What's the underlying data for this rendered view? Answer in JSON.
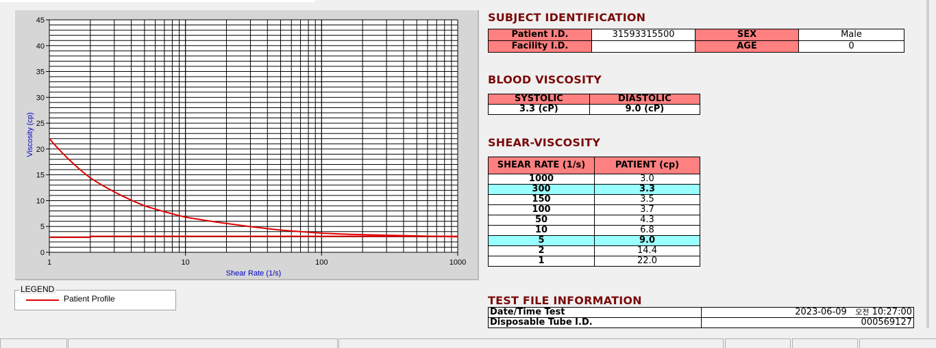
{
  "chart_data": {
    "type": "line",
    "xlabel": "Shear Rate (1/s)",
    "ylabel": "Viscosity (cp)",
    "xscale": "log",
    "xlim": [
      1,
      1000
    ],
    "ylim": [
      0,
      45
    ],
    "xticks": [
      "1",
      "10",
      "100",
      "1000"
    ],
    "yticks": [
      "0",
      "5",
      "10",
      "15",
      "20",
      "25",
      "30",
      "35",
      "40",
      "45"
    ],
    "grid": true,
    "legend_position": "bottom-left",
    "series": [
      {
        "name": "Patient Profile",
        "color": "#e00000",
        "x": [
          1,
          2,
          5,
          10,
          50,
          100,
          150,
          300,
          1000
        ],
        "y": [
          22.0,
          14.4,
          9.0,
          6.8,
          4.3,
          3.7,
          3.5,
          3.3,
          3.0
        ]
      },
      {
        "color": "#e00000",
        "x": [
          1,
          2,
          2,
          1000
        ],
        "y": [
          2.9,
          2.9,
          3.1,
          3.1
        ]
      }
    ]
  },
  "legend": {
    "title": "LEGEND",
    "items": [
      {
        "label": "Patient Profile",
        "color": "#e00000"
      }
    ]
  },
  "subject": {
    "title": "SUBJECT IDENTIFICATION",
    "patient_id_label": "Patient I.D.",
    "patient_id": "31593315500",
    "facility_id_label": "Facility I.D.",
    "facility_id": "",
    "sex_label": "SEX",
    "sex": "Male",
    "age_label": "AGE",
    "age": "0"
  },
  "blood": {
    "title": "BLOOD VISCOSITY",
    "systolic_label": "SYSTOLIC",
    "diastolic_label": "DIASTOLIC",
    "systolic": "3.3 (cP)",
    "diastolic": "9.0 (cP)"
  },
  "shear": {
    "title": "SHEAR-VISCOSITY",
    "col1": "SHEAR RATE (1/s)",
    "col2": "PATIENT (cp)",
    "rows": [
      {
        "rate": "1000",
        "val": "3.0"
      },
      {
        "rate": "300",
        "val": "3.3",
        "hl": true
      },
      {
        "rate": "150",
        "val": "3.5"
      },
      {
        "rate": "100",
        "val": "3.7"
      },
      {
        "rate": "50",
        "val": "4.3"
      },
      {
        "rate": "10",
        "val": "6.8"
      },
      {
        "rate": "5",
        "val": "9.0",
        "hl": true
      },
      {
        "rate": "2",
        "val": "14.4"
      },
      {
        "rate": "1",
        "val": "22.0"
      }
    ]
  },
  "testfile": {
    "title": "TEST FILE INFORMATION",
    "date_label": "Date/Time Test",
    "date": "2023-06-09",
    "ampm": "오전",
    "time": "10:27:00",
    "tube_label": "Disposable Tube I.D.",
    "tube": "000569127"
  },
  "colors": {
    "header_cell": "#ff8080",
    "highlight_row": "#99ffff",
    "section_title": "#7a0a0a",
    "axis_label": "#0000c0"
  }
}
